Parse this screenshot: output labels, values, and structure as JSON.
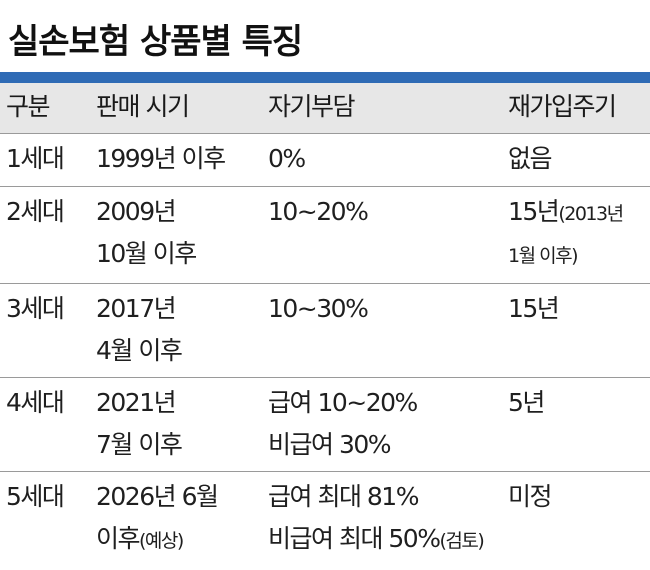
{
  "title": "실손보험 상품별 특징",
  "headers": [
    "구분",
    "판매 시기",
    "자기부담",
    "재가입주기"
  ],
  "rows": [
    {
      "gen": "1세대",
      "period": [
        "1999년 이후"
      ],
      "copay": [
        "0%"
      ],
      "renew": [
        "없음"
      ],
      "renew_suffix": [
        "",
        ""
      ],
      "copay_suffix": [
        "",
        ""
      ]
    },
    {
      "gen": "2세대",
      "period": [
        "2009년",
        "10월 이후"
      ],
      "copay": [
        "10~20%"
      ],
      "renew": [
        "15년",
        "1월 이후)"
      ],
      "renew_suffix": [
        "(2013년",
        ""
      ],
      "copay_suffix": [
        "",
        ""
      ]
    },
    {
      "gen": "3세대",
      "period": [
        "2017년",
        "4월 이후"
      ],
      "copay": [
        "10~30%"
      ],
      "renew": [
        "15년"
      ],
      "renew_suffix": [
        "",
        ""
      ],
      "copay_suffix": [
        "",
        ""
      ]
    },
    {
      "gen": "4세대",
      "period": [
        "2021년",
        "7월 이후"
      ],
      "copay": [
        "급여 10~20%",
        "비급여 30%"
      ],
      "renew": [
        "5년"
      ],
      "renew_suffix": [
        "",
        ""
      ],
      "copay_suffix": [
        "",
        ""
      ]
    },
    {
      "gen": "5세대",
      "period": [
        "2026년 6월",
        "이후"
      ],
      "period_suffix": [
        "",
        "(예상)"
      ],
      "copay": [
        "급여 최대 81%",
        "비급여 최대 50%"
      ],
      "copay_suffix": [
        "",
        "(검토)"
      ],
      "renew": [
        "미정"
      ],
      "renew_suffix": [
        "",
        ""
      ]
    }
  ]
}
